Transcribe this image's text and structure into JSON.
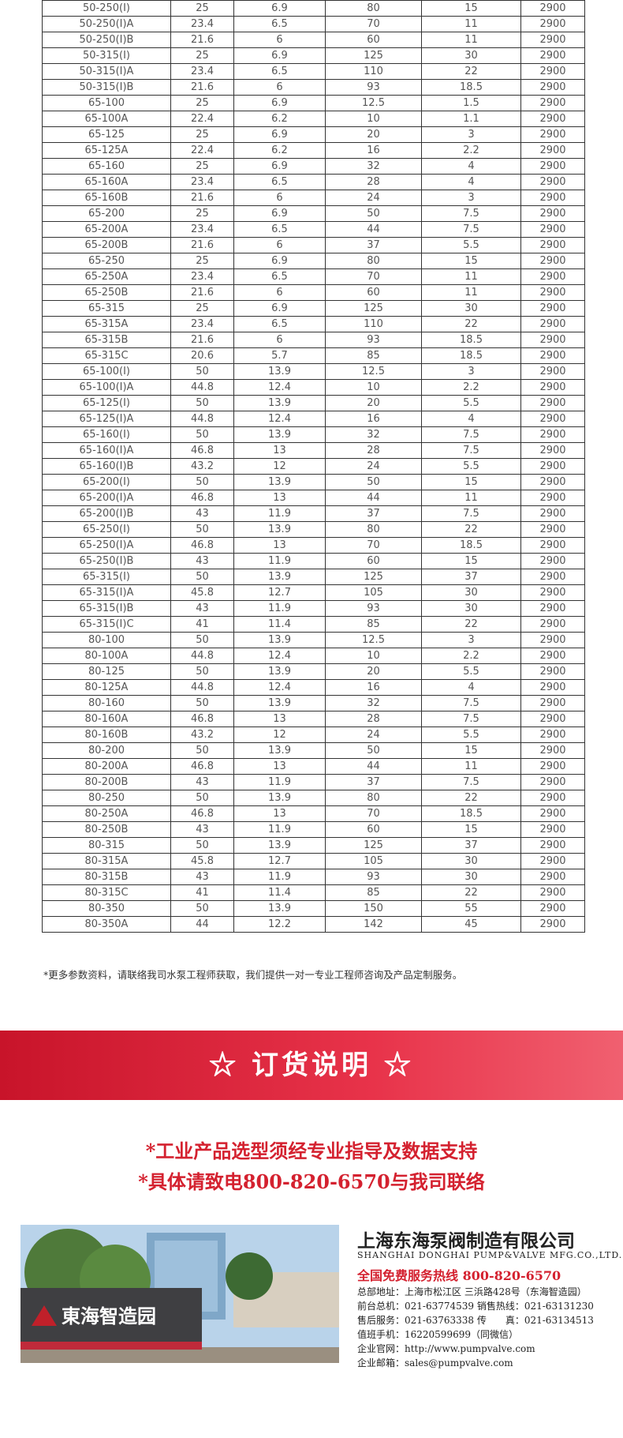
{
  "table": {
    "rows": [
      [
        "50-250(I)",
        "25",
        "6.9",
        "80",
        "15",
        "2900"
      ],
      [
        "50-250(I)A",
        "23.4",
        "6.5",
        "70",
        "11",
        "2900"
      ],
      [
        "50-250(I)B",
        "21.6",
        "6",
        "60",
        "11",
        "2900"
      ],
      [
        "50-315(I)",
        "25",
        "6.9",
        "125",
        "30",
        "2900"
      ],
      [
        "50-315(I)A",
        "23.4",
        "6.5",
        "110",
        "22",
        "2900"
      ],
      [
        "50-315(I)B",
        "21.6",
        "6",
        "93",
        "18.5",
        "2900"
      ],
      [
        "65-100",
        "25",
        "6.9",
        "12.5",
        "1.5",
        "2900"
      ],
      [
        "65-100A",
        "22.4",
        "6.2",
        "10",
        "1.1",
        "2900"
      ],
      [
        "65-125",
        "25",
        "6.9",
        "20",
        "3",
        "2900"
      ],
      [
        "65-125A",
        "22.4",
        "6.2",
        "16",
        "2.2",
        "2900"
      ],
      [
        "65-160",
        "25",
        "6.9",
        "32",
        "4",
        "2900"
      ],
      [
        "65-160A",
        "23.4",
        "6.5",
        "28",
        "4",
        "2900"
      ],
      [
        "65-160B",
        "21.6",
        "6",
        "24",
        "3",
        "2900"
      ],
      [
        "65-200",
        "25",
        "6.9",
        "50",
        "7.5",
        "2900"
      ],
      [
        "65-200A",
        "23.4",
        "6.5",
        "44",
        "7.5",
        "2900"
      ],
      [
        "65-200B",
        "21.6",
        "6",
        "37",
        "5.5",
        "2900"
      ],
      [
        "65-250",
        "25",
        "6.9",
        "80",
        "15",
        "2900"
      ],
      [
        "65-250A",
        "23.4",
        "6.5",
        "70",
        "11",
        "2900"
      ],
      [
        "65-250B",
        "21.6",
        "6",
        "60",
        "11",
        "2900"
      ],
      [
        "65-315",
        "25",
        "6.9",
        "125",
        "30",
        "2900"
      ],
      [
        "65-315A",
        "23.4",
        "6.5",
        "110",
        "22",
        "2900"
      ],
      [
        "65-315B",
        "21.6",
        "6",
        "93",
        "18.5",
        "2900"
      ],
      [
        "65-315C",
        "20.6",
        "5.7",
        "85",
        "18.5",
        "2900"
      ],
      [
        "65-100(I)",
        "50",
        "13.9",
        "12.5",
        "3",
        "2900"
      ],
      [
        "65-100(I)A",
        "44.8",
        "12.4",
        "10",
        "2.2",
        "2900"
      ],
      [
        "65-125(I)",
        "50",
        "13.9",
        "20",
        "5.5",
        "2900"
      ],
      [
        "65-125(I)A",
        "44.8",
        "12.4",
        "16",
        "4",
        "2900"
      ],
      [
        "65-160(I)",
        "50",
        "13.9",
        "32",
        "7.5",
        "2900"
      ],
      [
        "65-160(I)A",
        "46.8",
        "13",
        "28",
        "7.5",
        "2900"
      ],
      [
        "65-160(I)B",
        "43.2",
        "12",
        "24",
        "5.5",
        "2900"
      ],
      [
        "65-200(I)",
        "50",
        "13.9",
        "50",
        "15",
        "2900"
      ],
      [
        "65-200(I)A",
        "46.8",
        "13",
        "44",
        "11",
        "2900"
      ],
      [
        "65-200(I)B",
        "43",
        "11.9",
        "37",
        "7.5",
        "2900"
      ],
      [
        "65-250(I)",
        "50",
        "13.9",
        "80",
        "22",
        "2900"
      ],
      [
        "65-250(I)A",
        "46.8",
        "13",
        "70",
        "18.5",
        "2900"
      ],
      [
        "65-250(I)B",
        "43",
        "11.9",
        "60",
        "15",
        "2900"
      ],
      [
        "65-315(I)",
        "50",
        "13.9",
        "125",
        "37",
        "2900"
      ],
      [
        "65-315(I)A",
        "45.8",
        "12.7",
        "105",
        "30",
        "2900"
      ],
      [
        "65-315(I)B",
        "43",
        "11.9",
        "93",
        "30",
        "2900"
      ],
      [
        "65-315(I)C",
        "41",
        "11.4",
        "85",
        "22",
        "2900"
      ],
      [
        "80-100",
        "50",
        "13.9",
        "12.5",
        "3",
        "2900"
      ],
      [
        "80-100A",
        "44.8",
        "12.4",
        "10",
        "2.2",
        "2900"
      ],
      [
        "80-125",
        "50",
        "13.9",
        "20",
        "5.5",
        "2900"
      ],
      [
        "80-125A",
        "44.8",
        "12.4",
        "16",
        "4",
        "2900"
      ],
      [
        "80-160",
        "50",
        "13.9",
        "32",
        "7.5",
        "2900"
      ],
      [
        "80-160A",
        "46.8",
        "13",
        "28",
        "7.5",
        "2900"
      ],
      [
        "80-160B",
        "43.2",
        "12",
        "24",
        "5.5",
        "2900"
      ],
      [
        "80-200",
        "50",
        "13.9",
        "50",
        "15",
        "2900"
      ],
      [
        "80-200A",
        "46.8",
        "13",
        "44",
        "11",
        "2900"
      ],
      [
        "80-200B",
        "43",
        "11.9",
        "37",
        "7.5",
        "2900"
      ],
      [
        "80-250",
        "50",
        "13.9",
        "80",
        "22",
        "2900"
      ],
      [
        "80-250A",
        "46.8",
        "13",
        "70",
        "18.5",
        "2900"
      ],
      [
        "80-250B",
        "43",
        "11.9",
        "60",
        "15",
        "2900"
      ],
      [
        "80-315",
        "50",
        "13.9",
        "125",
        "37",
        "2900"
      ],
      [
        "80-315A",
        "45.8",
        "12.7",
        "105",
        "30",
        "2900"
      ],
      [
        "80-315B",
        "43",
        "11.9",
        "93",
        "30",
        "2900"
      ],
      [
        "80-315C",
        "41",
        "11.4",
        "85",
        "22",
        "2900"
      ],
      [
        "80-350",
        "50",
        "13.9",
        "150",
        "55",
        "2900"
      ],
      [
        "80-350A",
        "44",
        "12.2",
        "142",
        "45",
        "2900"
      ]
    ]
  },
  "note": "*更多参数资料，请联络我司水泵工程师获取，我们提供一对一专业工程师咨询及产品定制服务。",
  "banner": {
    "title": "☆ 订货说明 ☆"
  },
  "requirements": [
    "*工业产品选型须经专业指导及数据支持",
    "*具体请致电800-820-6570与我司联络"
  ],
  "photo": {
    "sign": "東海智造园"
  },
  "company": {
    "name": "上海东海泵阀制造有限公司",
    "name_en": "SHANGHAI DONGHAI PUMP&VALVE MFG.CO.,LTD.",
    "hotline": "全国免费服务热线 800-820-6570",
    "lines": [
      "总部地址：上海市松江区 三浜路428号（东海智造园）",
      "前台总机：021-63774539  销售热线：021-63131230",
      "售后服务：021-63763338  传　　真：021-63134513",
      "值班手机：16220599699（同微信）",
      "企业官网：http://www.pumpvalve.com",
      "企业邮箱：sales@pumpvalve.com"
    ]
  }
}
